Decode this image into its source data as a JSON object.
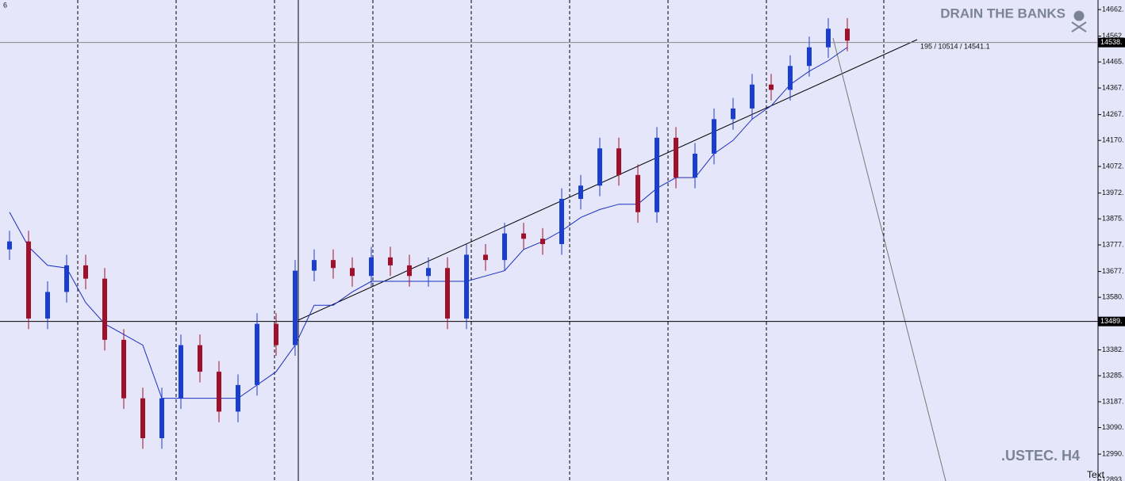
{
  "chart_data": {
    "type": "candlestick",
    "title": "DRAIN THE BANKS",
    "symbol_label": ".USTEC. H4",
    "annotation": "195 / 10514 / 14541.1",
    "corner_label": "6",
    "text_label": "Text",
    "ylim": [
      12889,
      14698
    ],
    "yticks": [
      {
        "value": 14662,
        "label": "14662."
      },
      {
        "value": 14562,
        "label": "14562."
      },
      {
        "value": 14465,
        "label": "14465."
      },
      {
        "value": 14367,
        "label": "14367."
      },
      {
        "value": 14267,
        "label": "14267."
      },
      {
        "value": 14170,
        "label": "14170."
      },
      {
        "value": 14072,
        "label": "14072."
      },
      {
        "value": 13972,
        "label": "13972."
      },
      {
        "value": 13875,
        "label": "13875."
      },
      {
        "value": 13777,
        "label": "13777."
      },
      {
        "value": 13677,
        "label": "13677."
      },
      {
        "value": 13580,
        "label": "13580."
      },
      {
        "value": 13382,
        "label": "13382."
      },
      {
        "value": 13285,
        "label": "13285."
      },
      {
        "value": 13187,
        "label": "13187."
      },
      {
        "value": 13090,
        "label": "13090."
      },
      {
        "value": 12990,
        "label": "12990."
      },
      {
        "value": 12893,
        "label": "12893."
      }
    ],
    "hlines": [
      {
        "value": 14538,
        "label": "14538."
      },
      {
        "value": 13489,
        "label": "13489."
      }
    ],
    "up_color": "#1a3fcf",
    "down_color": "#a0102a",
    "open": [
      13760,
      13790,
      13500,
      13600,
      13700,
      13650,
      13420,
      13200,
      13050,
      13200,
      13400,
      13300,
      13150,
      13250,
      13480,
      13400,
      13680,
      13720,
      13690,
      13660,
      13730,
      13700,
      13660,
      13690,
      13500,
      13740,
      13720,
      13820,
      13800,
      13780,
      13950,
      14000,
      14140,
      14040,
      13900,
      14180,
      14030,
      14120,
      14250,
      14290,
      14380,
      14360,
      14450,
      14520,
      14590
    ],
    "high": [
      13830,
      13830,
      13640,
      13740,
      13740,
      13690,
      13460,
      13240,
      13240,
      13440,
      13440,
      13340,
      13290,
      13520,
      13520,
      13720,
      13760,
      13760,
      13730,
      13770,
      13770,
      13740,
      13730,
      13730,
      13780,
      13780,
      13860,
      13860,
      13840,
      13990,
      14040,
      14180,
      14180,
      14080,
      14220,
      14220,
      14160,
      14290,
      14330,
      14420,
      14420,
      14490,
      14560,
      14630,
      14630
    ],
    "low": [
      13720,
      13460,
      13460,
      13560,
      13610,
      13380,
      13160,
      13010,
      13010,
      13160,
      13260,
      13110,
      13110,
      13210,
      13360,
      13360,
      13640,
      13650,
      13620,
      13620,
      13660,
      13620,
      13620,
      13460,
      13460,
      13680,
      13680,
      13760,
      13740,
      13740,
      13910,
      13960,
      14000,
      13860,
      13860,
      13990,
      13990,
      14080,
      14210,
      14250,
      14320,
      14320,
      14410,
      14480,
      14505
    ],
    "close": [
      13790,
      13500,
      13600,
      13700,
      13650,
      13420,
      13200,
      13050,
      13200,
      13400,
      13300,
      13150,
      13250,
      13480,
      13400,
      13680,
      13720,
      13690,
      13660,
      13730,
      13700,
      13660,
      13690,
      13500,
      13740,
      13720,
      13820,
      13800,
      13780,
      13950,
      14000,
      14140,
      14040,
      13900,
      14180,
      14030,
      14120,
      14250,
      14290,
      14380,
      14360,
      14450,
      14520,
      14590,
      14545
    ],
    "indicator": {
      "color": "#1a2fc0",
      "values": [
        13900,
        13770,
        13700,
        13690,
        13560,
        13480,
        13440,
        13400,
        13200,
        13200,
        13200,
        13200,
        13200,
        13250,
        13300,
        13400,
        13550,
        13550,
        13600,
        13640,
        13640,
        13640,
        13640,
        13640,
        13640,
        13660,
        13680,
        13760,
        13790,
        13830,
        13880,
        13910,
        13930,
        13930,
        13990,
        14030,
        14030,
        14120,
        14170,
        14250,
        14300,
        14380,
        14430,
        14470,
        14520
      ]
    }
  }
}
